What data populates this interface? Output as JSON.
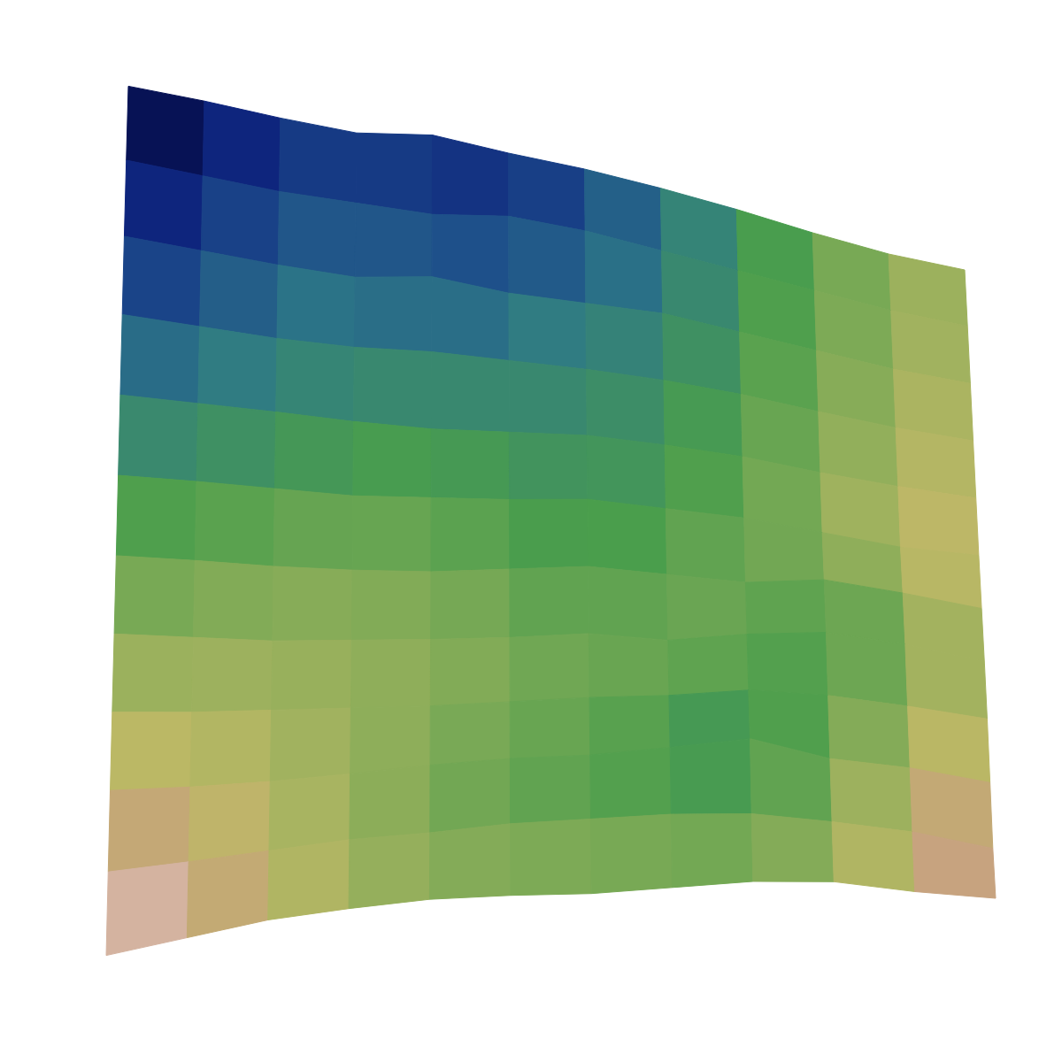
{
  "chart_data": {
    "type": "surface",
    "color": "gist_earth",
    "tick_labels": false,
    "x": [
      0,
      1,
      2,
      3,
      4,
      5,
      6,
      7,
      8,
      9,
      10,
      11
    ],
    "y": [
      0,
      1,
      2,
      3,
      4,
      5,
      6,
      7,
      8,
      9,
      10,
      11
    ],
    "zlim": [
      0,
      1
    ],
    "z": [
      [
        0.02,
        0.06,
        0.12,
        0.16,
        0.08,
        0.15,
        0.2,
        0.28,
        0.38,
        0.5,
        0.6,
        0.65
      ],
      [
        0.06,
        0.12,
        0.18,
        0.2,
        0.22,
        0.15,
        0.2,
        0.3,
        0.4,
        0.5,
        0.6,
        0.66
      ],
      [
        0.12,
        0.18,
        0.24,
        0.28,
        0.2,
        0.28,
        0.3,
        0.32,
        0.42,
        0.52,
        0.62,
        0.68
      ],
      [
        0.2,
        0.25,
        0.3,
        0.32,
        0.3,
        0.32,
        0.34,
        0.38,
        0.45,
        0.55,
        0.64,
        0.7
      ],
      [
        0.3,
        0.33,
        0.36,
        0.4,
        0.42,
        0.4,
        0.38,
        0.42,
        0.48,
        0.58,
        0.66,
        0.72
      ],
      [
        0.4,
        0.42,
        0.45,
        0.48,
        0.46,
        0.44,
        0.4,
        0.45,
        0.5,
        0.6,
        0.7,
        0.74
      ],
      [
        0.5,
        0.52,
        0.55,
        0.56,
        0.55,
        0.5,
        0.45,
        0.5,
        0.55,
        0.5,
        0.6,
        0.72
      ],
      [
        0.58,
        0.6,
        0.62,
        0.6,
        0.58,
        0.55,
        0.5,
        0.55,
        0.48,
        0.45,
        0.55,
        0.7
      ],
      [
        0.66,
        0.66,
        0.64,
        0.62,
        0.6,
        0.56,
        0.52,
        0.5,
        0.45,
        0.5,
        0.6,
        0.72
      ],
      [
        0.74,
        0.72,
        0.68,
        0.62,
        0.55,
        0.5,
        0.48,
        0.42,
        0.35,
        0.55,
        0.65,
        0.8
      ],
      [
        0.85,
        0.78,
        0.7,
        0.62,
        0.58,
        0.52,
        0.5,
        0.48,
        0.5,
        0.6,
        0.72,
        0.9
      ],
      [
        0.98,
        0.85,
        0.72,
        0.65,
        0.6,
        0.6,
        0.62,
        0.6,
        0.58,
        0.62,
        0.75,
        0.85
      ]
    ]
  }
}
